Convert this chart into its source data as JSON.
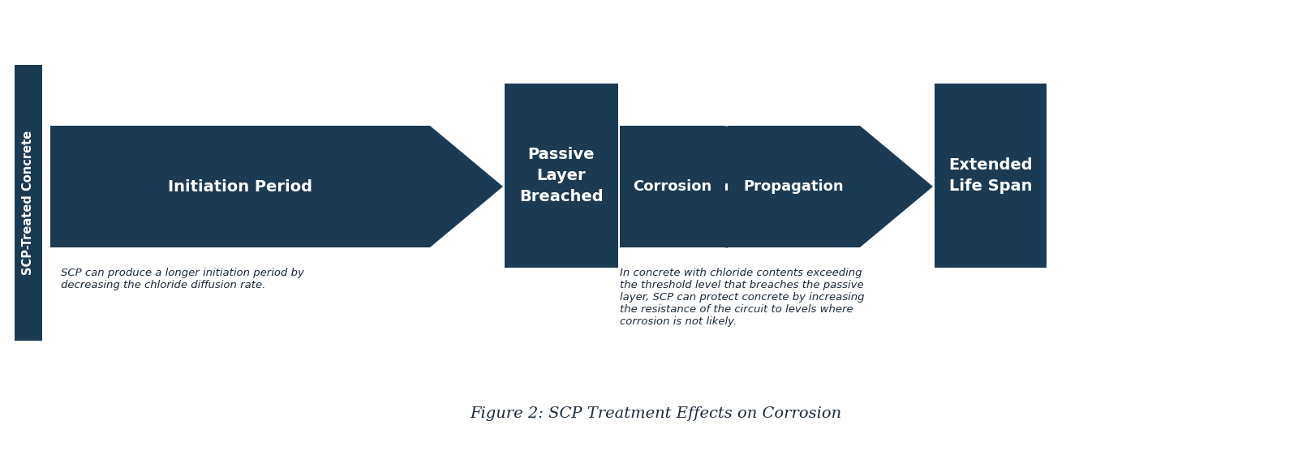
{
  "bg_color": "#ffffff",
  "dark_blue": "#1b3a54",
  "text_color": "#1b2a3a",
  "figure_caption": "Figure 2: SCP Treatment Effects on Corrosion",
  "sidebar_label": "SCP-Treated Concrete",
  "annotation1_text": "SCP can produce a longer initiation period by\ndecreasing the chloride diffusion rate.",
  "annotation2_text": "In concrete with chloride contents exceeding\nthe threshold level that breaches the passive\nlayer, SCP can protect concrete by increasing\nthe resistance of the circuit to levels where\ncorrosion is not likely."
}
